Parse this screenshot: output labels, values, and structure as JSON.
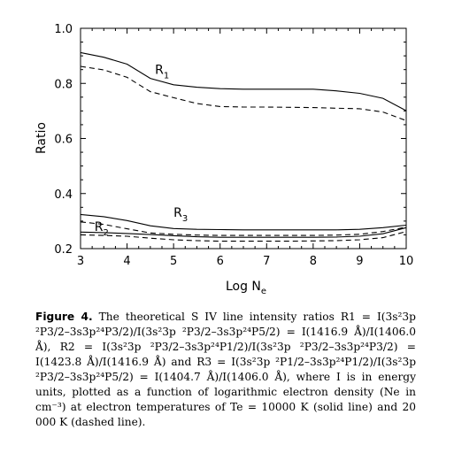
{
  "chart_data": {
    "type": "line",
    "xlabel": "Log N",
    "xlabel_sub": "e",
    "ylabel": "Ratio",
    "xlim": [
      3,
      10
    ],
    "ylim": [
      0.2,
      1.0
    ],
    "xticks": [
      "3",
      "4",
      "5",
      "6",
      "7",
      "8",
      "9",
      "10"
    ],
    "yticks": [
      "0.2",
      "0.4",
      "0.6",
      "0.8",
      "1.0"
    ],
    "x": [
      3.0,
      3.5,
      4.0,
      4.5,
      5.0,
      5.5,
      6.0,
      6.5,
      7.0,
      7.5,
      8.0,
      8.5,
      9.0,
      9.5,
      10.0
    ],
    "series": [
      {
        "name": "R1",
        "style": "solid",
        "values": [
          0.912,
          0.895,
          0.87,
          0.818,
          0.795,
          0.786,
          0.781,
          0.779,
          0.779,
          0.779,
          0.779,
          0.773,
          0.764,
          0.746,
          0.701
        ]
      },
      {
        "name": "R1",
        "style": "dashed",
        "values": [
          0.862,
          0.849,
          0.822,
          0.77,
          0.748,
          0.727,
          0.716,
          0.714,
          0.714,
          0.713,
          0.712,
          0.71,
          0.708,
          0.696,
          0.665
        ]
      },
      {
        "name": "R2",
        "style": "solid",
        "values": [
          0.26,
          0.258,
          0.255,
          0.251,
          0.247,
          0.243,
          0.241,
          0.241,
          0.241,
          0.241,
          0.241,
          0.242,
          0.245,
          0.254,
          0.276
        ]
      },
      {
        "name": "R2",
        "style": "dashed",
        "values": [
          0.25,
          0.248,
          0.245,
          0.238,
          0.232,
          0.229,
          0.227,
          0.227,
          0.227,
          0.227,
          0.228,
          0.229,
          0.232,
          0.24,
          0.262
        ]
      },
      {
        "name": "R3",
        "style": "solid",
        "values": [
          0.324,
          0.316,
          0.302,
          0.283,
          0.273,
          0.27,
          0.269,
          0.268,
          0.268,
          0.268,
          0.268,
          0.268,
          0.27,
          0.276,
          0.285
        ]
      },
      {
        "name": "R3",
        "style": "dashed",
        "values": [
          0.297,
          0.288,
          0.272,
          0.257,
          0.252,
          0.249,
          0.248,
          0.248,
          0.248,
          0.248,
          0.248,
          0.249,
          0.252,
          0.262,
          0.278
        ]
      }
    ],
    "annotations": [
      {
        "text": "R",
        "sub": "1",
        "x": 4.6,
        "y": 0.835
      },
      {
        "text": "R",
        "sub": "3",
        "x": 5.0,
        "y": 0.315
      },
      {
        "text": "R",
        "sub": "2",
        "x": 3.3,
        "y": 0.265
      }
    ]
  },
  "caption": {
    "label": "Figure 4.",
    "text": "The theoretical S IV line intensity ratios R1 = I(3s²3p ²P3/2–3s3p²⁴P3/2)/I(3s²3p ²P3/2–3s3p²⁴P5/2) = I(1416.9 Å)/I(1406.0 Å), R2 = I(3s²3p ²P3/2–3s3p²⁴P1/2)/I(3s²3p ²P3/2–3s3p²⁴P3/2) = I(1423.8 Å)/I(1416.9 Å) and R3 = I(3s²3p ²P1/2–3s3p²⁴P1/2)/I(3s²3p ²P3/2–3s3p²⁴P5/2) = I(1404.7 Å)/I(1406.0 Å), where I is in energy units, plotted as a function of logarithmic electron density (Ne in cm⁻³) at electron temperatures of Te = 10000 K (solid line) and 20 000 K (dashed line)."
  }
}
